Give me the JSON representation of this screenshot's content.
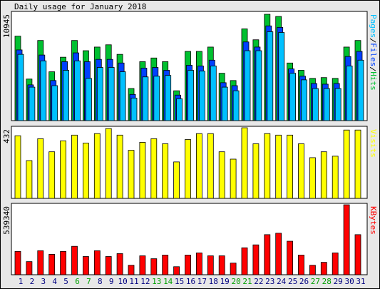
{
  "chart_data": [
    {
      "type": "bar",
      "title": "Daily usage for January 2018",
      "ylim": [
        0,
        10945
      ],
      "yticks": [
        10945
      ],
      "series": [
        {
          "name": "Hits",
          "color": "#00c030",
          "values": [
            8580,
            4220,
            8140,
            4960,
            6440,
            8140,
            7100,
            7470,
            7700,
            6730,
            3260,
            5990,
            6360,
            5990,
            3030,
            7030,
            7030,
            7470,
            4810,
            4070,
            9320,
            8210,
            10800,
            10580,
            5850,
            5110,
            4290,
            4370,
            4290,
            7470,
            8140
          ]
        },
        {
          "name": "Files",
          "color": "#0040ff",
          "values": [
            7180,
            3630,
            6660,
            4070,
            5990,
            6880,
            5990,
            6220,
            6220,
            5850,
            2660,
            5330,
            5400,
            5110,
            2590,
            5620,
            5550,
            6140,
            3850,
            3550,
            7990,
            7470,
            9620,
            9470,
            5250,
            4510,
            3770,
            3700,
            3770,
            6510,
            7030
          ]
        },
        {
          "name": "Pages",
          "color": "#00c0ff",
          "values": [
            6730,
            3400,
            6070,
            3550,
            5110,
            6070,
            4290,
            5400,
            5400,
            4960,
            2290,
            4440,
            4510,
            4590,
            2220,
            5110,
            5030,
            5550,
            3400,
            3030,
            7100,
            7100,
            9030,
            8950,
            4810,
            4140,
            3260,
            3260,
            3260,
            5550,
            6140
          ]
        }
      ]
    },
    {
      "type": "bar",
      "ylim": [
        0,
        432
      ],
      "yticks": [
        432
      ],
      "series": [
        {
          "name": "Visits",
          "color": "#ffff00",
          "values": [
            383,
            231,
            365,
            285,
            352,
            387,
            338,
            396,
            427,
            387,
            294,
            343,
            365,
            334,
            223,
            360,
            396,
            396,
            285,
            240,
            432,
            334,
            396,
            387,
            387,
            334,
            249,
            285,
            258,
            418,
            418
          ]
        }
      ]
    },
    {
      "type": "bar",
      "ylim": [
        0,
        539340
      ],
      "yticks": [
        539340
      ],
      "categories": [
        "1",
        "2",
        "3",
        "4",
        "5",
        "6",
        "7",
        "8",
        "9",
        "10",
        "11",
        "12",
        "13",
        "14",
        "15",
        "16",
        "17",
        "18",
        "19",
        "20",
        "21",
        "22",
        "23",
        "24",
        "25",
        "26",
        "27",
        "28",
        "29",
        "30",
        "31"
      ],
      "category_colors": [
        "#000080",
        "#000080",
        "#000080",
        "#000080",
        "#000080",
        "#00a000",
        "#00a000",
        "#000080",
        "#000080",
        "#000080",
        "#000080",
        "#000080",
        "#00a000",
        "#00a000",
        "#000080",
        "#000080",
        "#000080",
        "#000080",
        "#000080",
        "#00a000",
        "#00a000",
        "#000080",
        "#000080",
        "#000080",
        "#000080",
        "#000080",
        "#00a000",
        "#00a000",
        "#000080",
        "#000080",
        "#000080"
      ],
      "series": [
        {
          "name": "KBytes",
          "color": "#ff0000",
          "values": [
            179780,
            101120,
            185390,
            157300,
            179780,
            219100,
            140450,
            185390,
            140450,
            162920,
            73030,
            146070,
            123600,
            151690,
            61800,
            151690,
            168540,
            146070,
            146070,
            89890,
            207870,
            230340,
            308990,
            320230,
            258430,
            151690,
            73030,
            95510,
            168540,
            539340,
            308990
          ]
        }
      ]
    }
  ]
}
